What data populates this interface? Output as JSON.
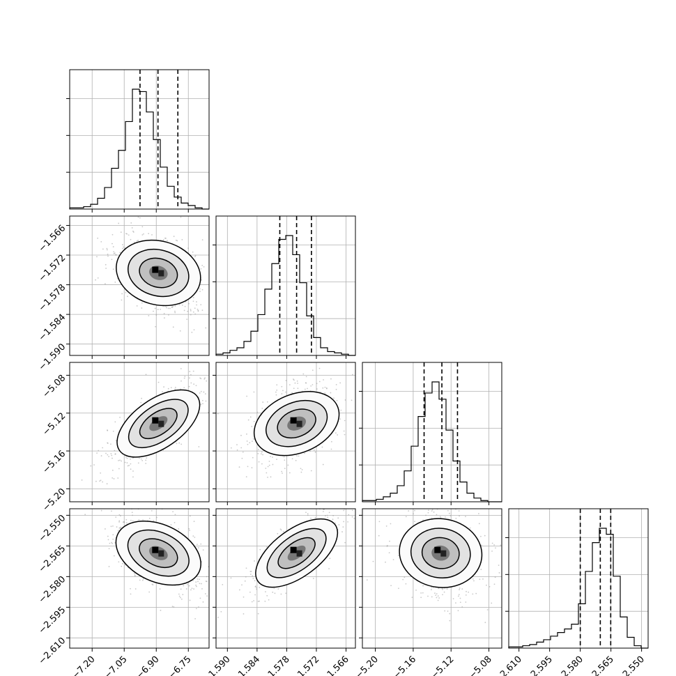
{
  "chart_data": {
    "type": "corner",
    "parameters": [
      {
        "ticks": [
          -7.2,
          -7.05,
          -6.9,
          -6.75
        ],
        "tick_labels": [
          "−7.20",
          "−7.05",
          "−6.90",
          "−6.75"
        ],
        "range": [
          -7.305,
          -6.653
        ]
      },
      {
        "ticks": [
          -1.59,
          -1.584,
          -1.578,
          -1.572,
          -1.566
        ],
        "tick_labels": [
          "−1.590",
          "−1.584",
          "−1.578",
          "−1.572",
          "−1.566"
        ],
        "range": [
          -1.5923,
          -1.5641
        ]
      },
      {
        "ticks": [
          -5.2,
          -5.16,
          -5.12,
          -5.08
        ],
        "tick_labels": [
          "−5.20",
          "−5.16",
          "−5.12",
          "−5.08"
        ],
        "range": [
          -5.2137,
          -5.0664
        ]
      },
      {
        "ticks": [
          -2.61,
          -2.595,
          -2.58,
          -2.565,
          -2.55
        ],
        "tick_labels": [
          "−2.610",
          "−2.595",
          "−2.580",
          "−2.565",
          "−2.550"
        ],
        "range": [
          -2.615,
          -2.5468
        ]
      }
    ],
    "histograms": [
      {
        "param": 0,
        "counts": [
          1,
          1,
          2,
          4,
          9,
          18,
          34,
          49,
          73,
          100,
          98,
          81,
          58,
          35,
          19,
          10,
          5,
          3,
          1,
          0
        ],
        "quantiles": [
          -6.976,
          -6.892,
          -6.799
        ]
      },
      {
        "param": 1,
        "counts": [
          1,
          2,
          4,
          6,
          11,
          19,
          32,
          52,
          72,
          91,
          94,
          79,
          57,
          31,
          14,
          6,
          3,
          2,
          1,
          0
        ],
        "quantiles": [
          -1.5794,
          -1.576,
          -1.573
        ]
      },
      {
        "param": 2,
        "counts": [
          1,
          1,
          2,
          4,
          7,
          13,
          25,
          45,
          69,
          88,
          97,
          83,
          58,
          33,
          16,
          7,
          3,
          1,
          0,
          0
        ],
        "quantiles": [
          -5.1485,
          -5.1297,
          -5.1132
        ]
      },
      {
        "param": 3,
        "counts": [
          1,
          1,
          2,
          3,
          5,
          7,
          10,
          13,
          16,
          20,
          37,
          64,
          88,
          100,
          95,
          60,
          26,
          9,
          2,
          0
        ],
        "quantiles": [
          -2.58,
          -2.5702,
          -2.5651
        ]
      }
    ],
    "pairs": [
      {
        "x_param": 0,
        "y_param": 1,
        "center": [
          -6.89,
          -1.5756
        ],
        "rho": -0.3
      },
      {
        "x_param": 0,
        "y_param": 2,
        "center": [
          -6.89,
          -5.131
        ],
        "rho": 0.75
      },
      {
        "x_param": 1,
        "y_param": 2,
        "center": [
          -1.576,
          -5.131
        ],
        "rho": 0.45
      },
      {
        "x_param": 0,
        "y_param": 3,
        "center": [
          -6.89,
          -2.5685
        ],
        "rho": -0.5
      },
      {
        "x_param": 1,
        "y_param": 3,
        "center": [
          -1.576,
          -2.5685
        ],
        "rho": 0.8
      },
      {
        "x_param": 2,
        "y_param": 3,
        "center": [
          -5.131,
          -2.5685
        ],
        "rho": -0.15
      }
    ],
    "grid": true
  }
}
